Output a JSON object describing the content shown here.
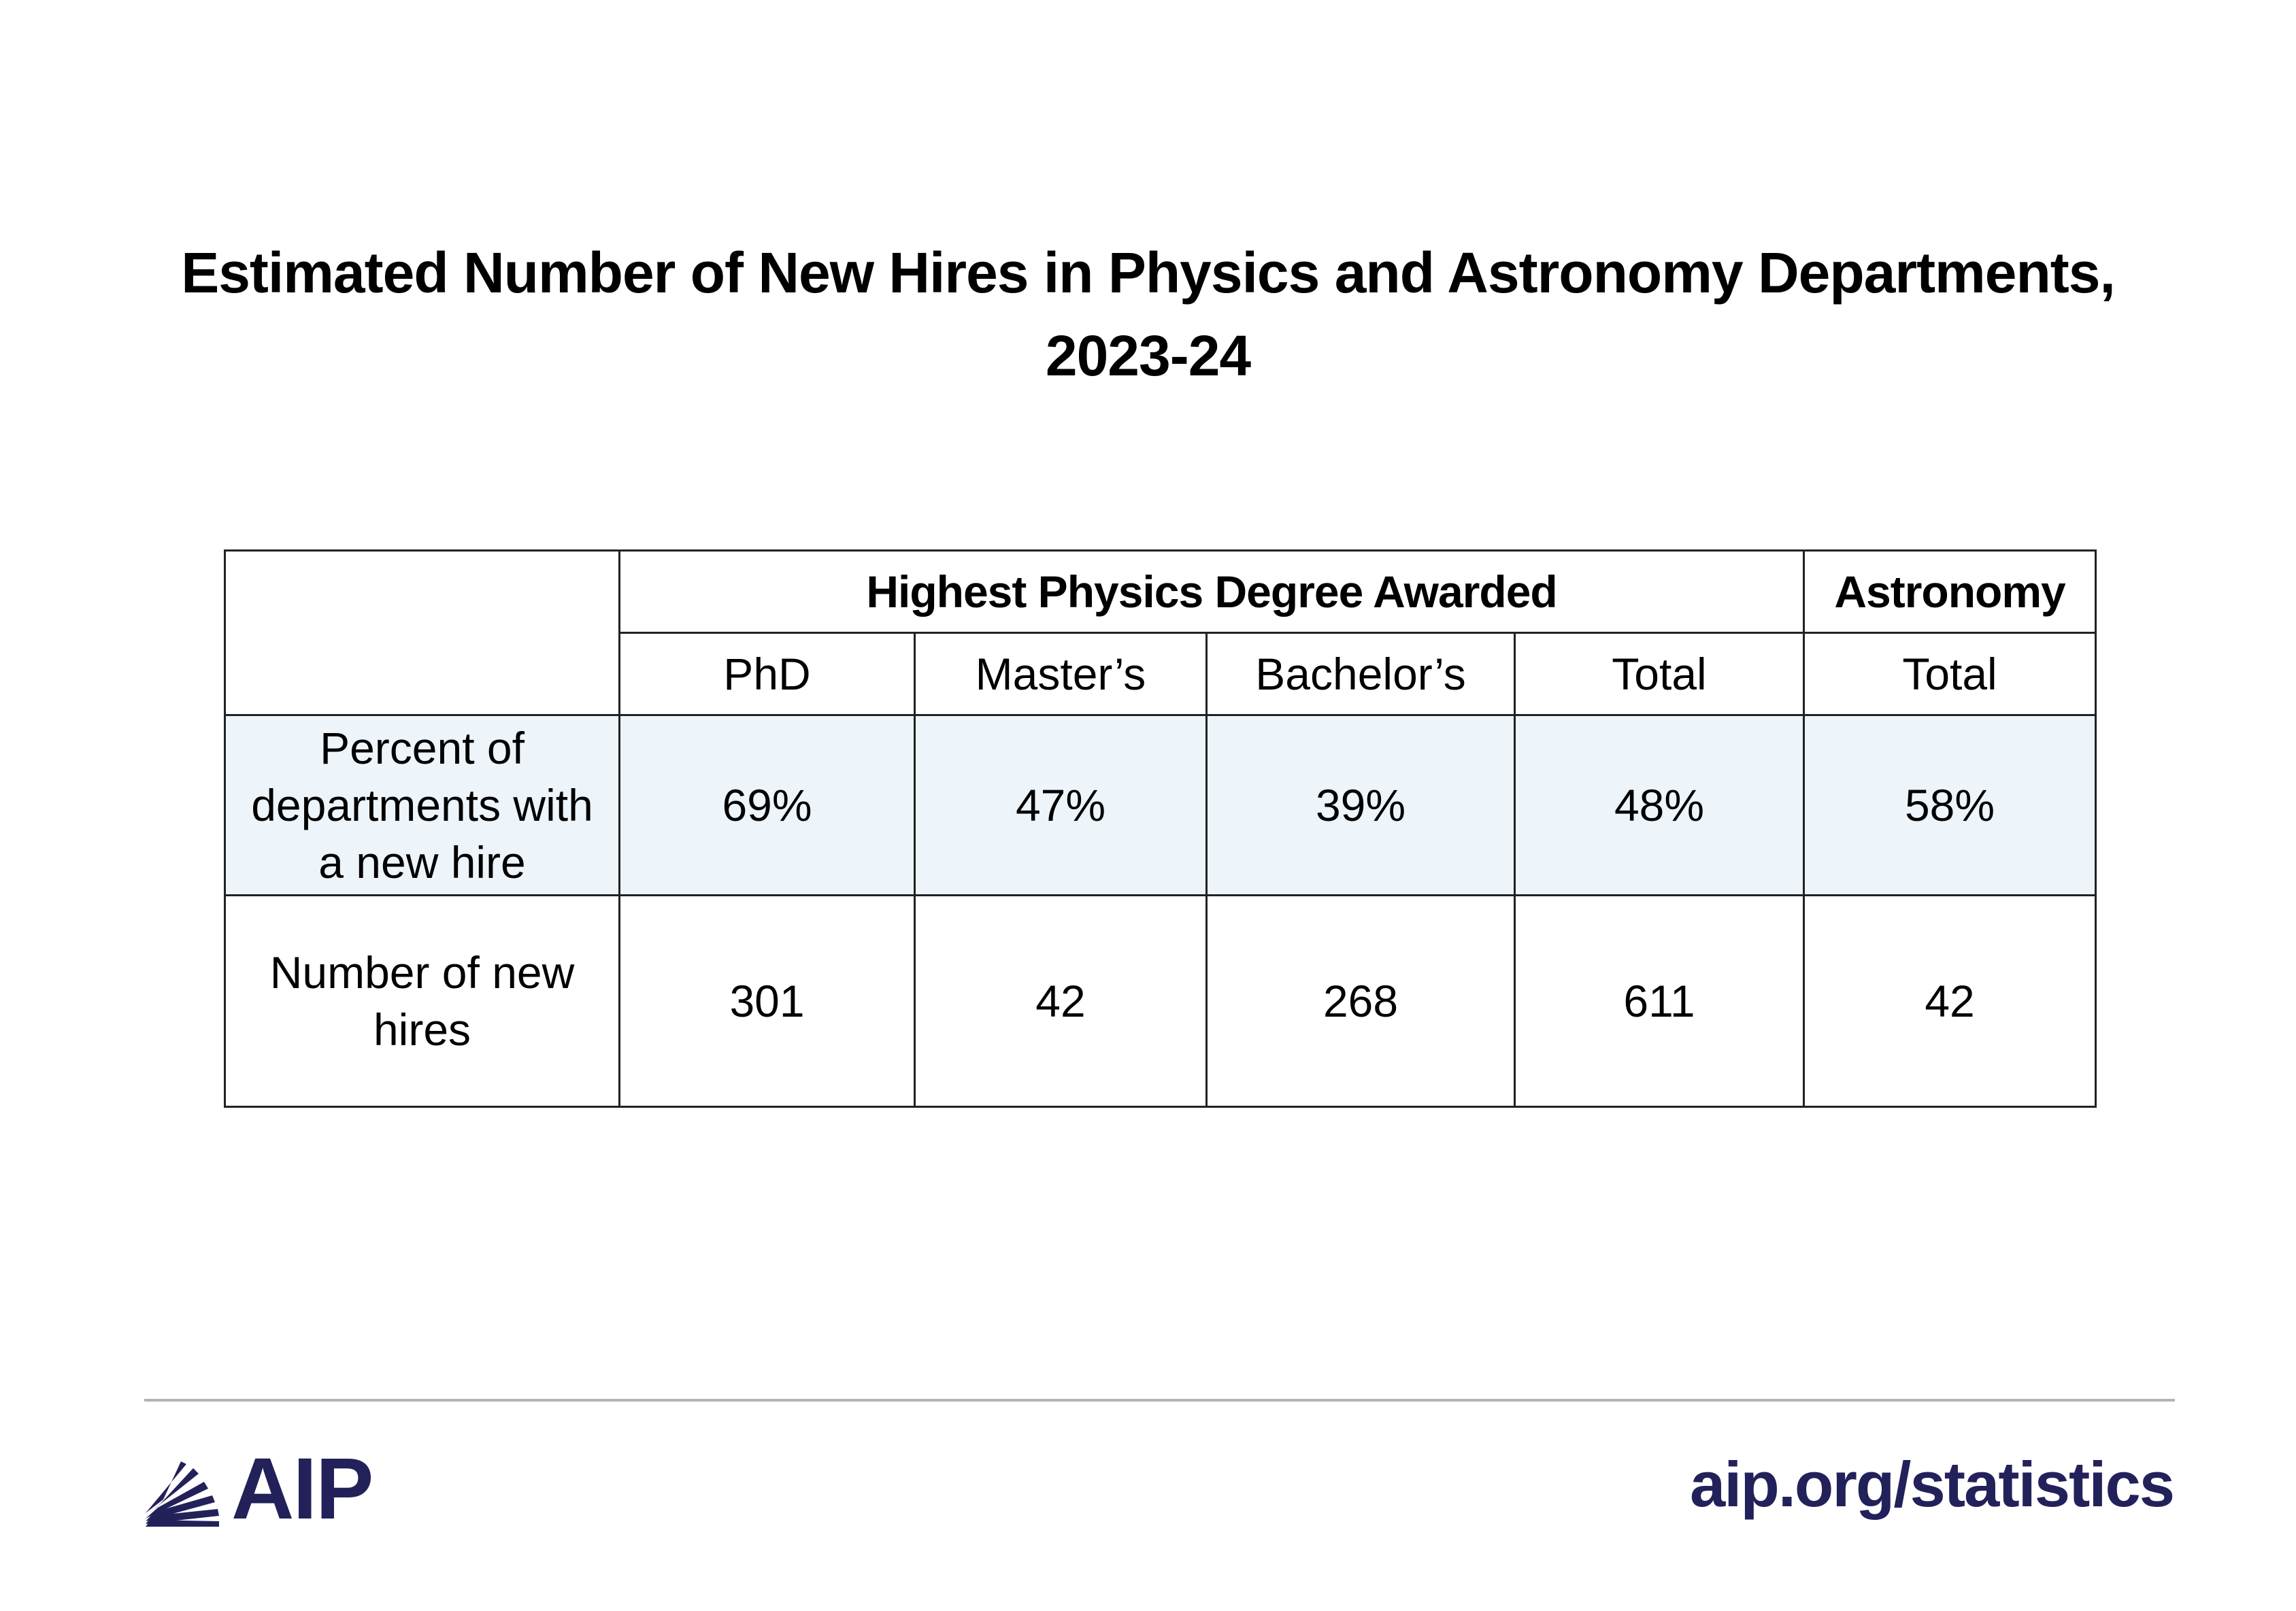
{
  "title": {
    "line1": "Estimated Number of New Hires in Physics and Astronomy Departments,",
    "line2": "2023-24"
  },
  "chart_data": {
    "type": "table",
    "column_groups": [
      {
        "label": "Highest Physics Degree Awarded",
        "columns": [
          "PhD",
          "Master’s",
          "Bachelor’s",
          "Total"
        ]
      },
      {
        "label": "Astronomy",
        "columns": [
          "Total"
        ]
      }
    ],
    "rows": [
      {
        "label": "Percent of departments with a new hire",
        "label_lines": [
          "Percent of",
          "departments with",
          "a new hire"
        ],
        "cells": [
          "69%",
          "47%",
          "39%",
          "48%",
          "58%"
        ]
      },
      {
        "label": "Number of new hires",
        "label_lines": [
          "Number of new",
          "hires"
        ],
        "cells": [
          "301",
          "42",
          "268",
          "611",
          "42"
        ]
      }
    ]
  },
  "footer": {
    "logo_text": "AIP",
    "site": "aip.org/statistics"
  },
  "colors": {
    "highlight_row": "#edf4fa",
    "brand": "#23215a",
    "rule": "#b3b3b3"
  },
  "icons": {
    "logo": "aip-rays-logo-icon"
  }
}
